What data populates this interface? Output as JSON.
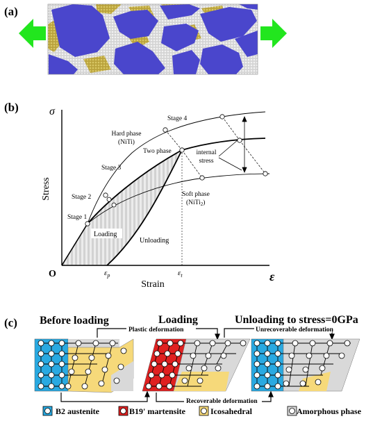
{
  "panel_a": {
    "label": "(a)",
    "colors": {
      "grain": "#4a46cc",
      "boundary": "#d8d8d8",
      "yellow_phase": "#c9b64a",
      "arrow": "#22e61e"
    }
  },
  "panel_b": {
    "label": "(b)",
    "y_axis_symbol": "σ",
    "x_axis_symbol": "ε",
    "origin": "O",
    "ylabel": "Stress",
    "xlabel": "Strain",
    "eps_p": "ε",
    "eps_p_sub": "p",
    "eps_t": "ε",
    "eps_t_sub": "t",
    "labels": {
      "stage1": "Stage 1",
      "stage2": "Stage 2",
      "stage3": "Stage 3",
      "stage4": "Stage 4",
      "hard_phase_line1": "Hard phase",
      "hard_phase_line2": "(NiTi)",
      "two_phase": "Two phase",
      "internal_line1": "internal",
      "internal_line2": "stress",
      "soft_phase_line1": "Soft phase",
      "soft_phase_line2_a": "(NiTi",
      "soft_phase_line2_sub": "2",
      "soft_phase_line2_b": ")",
      "loading": "Loading",
      "unloading": "Unloading"
    }
  },
  "panel_c": {
    "label": "(c)",
    "titles": {
      "before": "Before loading",
      "loading": "Loading",
      "unloading": "Unloading to stress=0GPa"
    },
    "annotations": {
      "plastic": "Plastic deformation",
      "unrecoverable": "Unrecoverable deformation",
      "recoverable": "Recoverable deformation"
    },
    "legend": [
      {
        "name": "B2 austenite",
        "color": "#29a9e1"
      },
      {
        "name": "B19' martensite",
        "color": "#e02020"
      },
      {
        "name": "Icosahedral",
        "color": "#f6d97a"
      },
      {
        "name": "Amorphous phase",
        "color": "#d9d9d9"
      }
    ]
  }
}
